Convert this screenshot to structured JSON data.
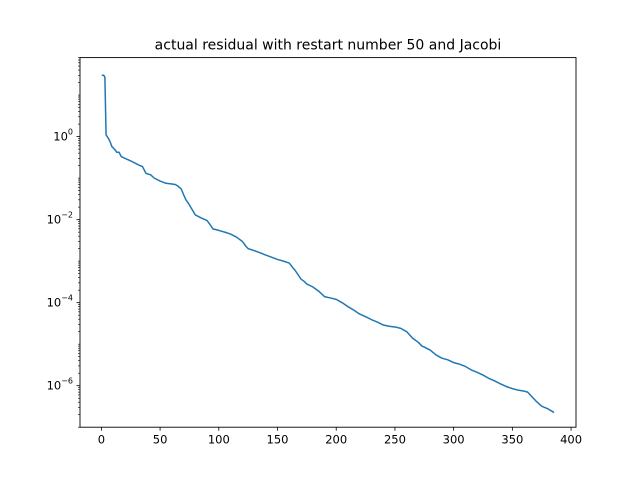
{
  "chart_data": {
    "type": "line",
    "title": "actual residual with restart number 50 and Jacobi",
    "xlabel": "",
    "ylabel": "",
    "xscale": "linear",
    "yscale": "log",
    "xlim": [
      -18.2,
      404.2
    ],
    "ylim": [
      1e-07,
      80
    ],
    "xticks": [
      0,
      50,
      100,
      150,
      200,
      250,
      300,
      350,
      400
    ],
    "xtick_labels": [
      "0",
      "50",
      "100",
      "150",
      "200",
      "250",
      "300",
      "350",
      "400"
    ],
    "yticks": [
      1,
      0.01,
      0.0001,
      1e-06
    ],
    "ytick_labels": [
      {
        "base": "10",
        "exp": "0"
      },
      {
        "base": "10",
        "exp": "−2"
      },
      {
        "base": "10",
        "exp": "−4"
      },
      {
        "base": "10",
        "exp": "−6"
      }
    ],
    "grid": false,
    "legend": "none",
    "series": [
      {
        "color": "#1f77b4",
        "x": [
          1,
          2,
          3,
          4,
          5,
          6,
          7,
          8,
          9,
          10,
          11,
          12,
          13,
          14,
          15,
          17,
          20,
          25,
          30,
          33,
          35,
          38,
          42,
          45,
          50,
          55,
          60,
          63,
          65,
          68,
          70,
          72,
          74,
          77,
          80,
          85,
          90,
          92,
          95,
          100,
          105,
          110,
          115,
          120,
          123,
          125,
          130,
          135,
          140,
          150,
          155,
          160,
          163,
          165,
          170,
          173,
          175,
          180,
          185,
          190,
          195,
          200,
          205,
          210,
          215,
          220,
          225,
          230,
          235,
          240,
          245,
          250,
          255,
          260,
          265,
          270,
          273,
          275,
          280,
          285,
          290,
          295,
          300,
          305,
          310,
          315,
          320,
          325,
          330,
          335,
          340,
          345,
          350,
          355,
          360,
          363,
          365,
          370,
          375,
          380,
          385
        ],
        "y": [
          30,
          30,
          27,
          1.1,
          1.0,
          0.9,
          0.8,
          0.68,
          0.57,
          0.54,
          0.5,
          0.47,
          0.42,
          0.42,
          0.42,
          0.33,
          0.3,
          0.26,
          0.22,
          0.2,
          0.19,
          0.13,
          0.12,
          0.1,
          0.085,
          0.075,
          0.072,
          0.07,
          0.065,
          0.055,
          0.04,
          0.03,
          0.025,
          0.018,
          0.013,
          0.011,
          0.0095,
          0.008,
          0.006,
          0.0055,
          0.005,
          0.0045,
          0.0038,
          0.003,
          0.0023,
          0.002,
          0.0018,
          0.0016,
          0.0014,
          0.0011,
          0.001,
          0.0009,
          0.0007,
          0.0006,
          0.00037,
          0.00032,
          0.00028,
          0.00024,
          0.00019,
          0.00014,
          0.00013,
          0.00012,
          0.0001,
          8e-05,
          6.6e-05,
          5.3e-05,
          4.6e-05,
          3.9e-05,
          3.4e-05,
          2.9e-05,
          2.7e-05,
          2.6e-05,
          2.4e-05,
          2e-05,
          1.4e-05,
          1.1e-05,
          9e-06,
          8.5e-06,
          7.2e-06,
          5.5e-06,
          4.6e-06,
          4.2e-06,
          3.6e-06,
          3.3e-06,
          2.9e-06,
          2.4e-06,
          2.1e-06,
          1.8e-06,
          1.5e-06,
          1.3e-06,
          1.1e-06,
          9.5e-07,
          8.5e-07,
          7.8e-07,
          7.4e-07,
          7e-07,
          6.1e-07,
          4.3e-07,
          3.2e-07,
          2.8e-07,
          2.3e-07
        ]
      }
    ]
  }
}
